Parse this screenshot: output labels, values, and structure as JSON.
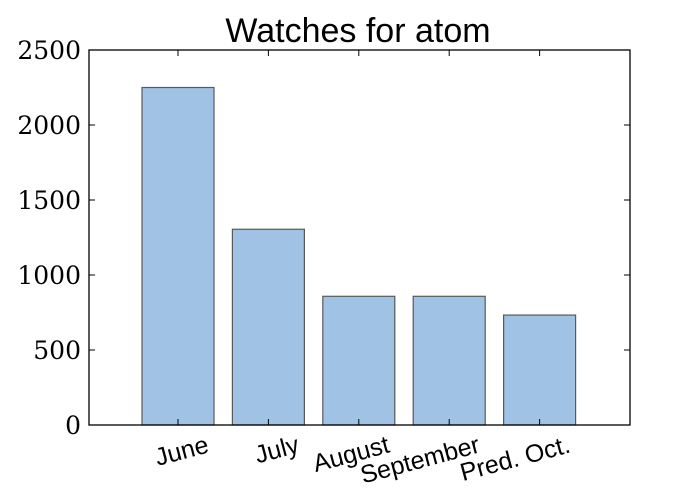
{
  "chart_data": {
    "type": "bar",
    "title": "Watches for atom",
    "xlabel": "",
    "ylabel": "",
    "categories": [
      "June",
      "July",
      "August",
      "September",
      "Pred. Oct."
    ],
    "values": [
      2250,
      1305,
      858,
      858,
      733
    ],
    "ylim": [
      0,
      2500
    ],
    "yticks": [
      "0",
      "500",
      "1000",
      "1500",
      "2000",
      "2500"
    ],
    "grid": false,
    "legend": "none",
    "colors": {
      "bar_fill": "#a0c2e4",
      "bar_edge": "#595959",
      "axis": "#000000"
    }
  }
}
